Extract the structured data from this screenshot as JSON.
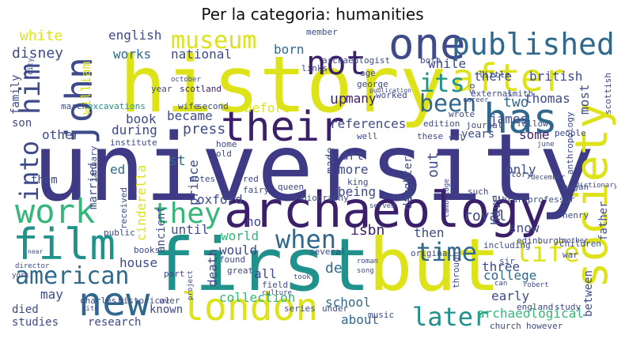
{
  "title": "Per la categoria: humanities",
  "colors": {
    "dark_purple": "#3b1f6b",
    "indigo": "#3e4a89",
    "blue": "#31688e",
    "teal": "#21918c",
    "green": "#35b779",
    "lime": "#90d743",
    "yellow": "#dde318"
  },
  "words": {
    "university": "university",
    "history": "history",
    "first": "first",
    "but": "but",
    "archaeology": "archaeology",
    "london": "london",
    "society": "society",
    "film": "film",
    "their": "their",
    "new": "new",
    "work": "work",
    "john": "john",
    "one": "one",
    "published": "published",
    "has": "has",
    "after": "after",
    "museum": "museum",
    "not": "not",
    "been": "been",
    "its": "its",
    "they": "they",
    "american": "american",
    "time": "time",
    "later": "later",
    "life": "life",
    "when": "when",
    "him": "him",
    "into": "into",
    "white": "white",
    "english": "english",
    "disney": "disney",
    "works": "works",
    "national": "national",
    "william": "william",
    "born": "born",
    "while": "while",
    "there": "there",
    "british": "british",
    "family": "family",
    "scotland": "scotland",
    "up": "up",
    "many": "many",
    "two": "two",
    "thomas": "thomas",
    "most": "most",
    "excavations": "excavations",
    "wife": "wife",
    "second": "second",
    "before": "before",
    "references": "references",
    "james": "james",
    "other": "other",
    "book": "book",
    "became": "became",
    "press": "press",
    "some": "some",
    "years": "years",
    "during": "during",
    "st": "st",
    "art": "art",
    "more": "more",
    "out": "out",
    "only": "only",
    "story": "story",
    "ed": "ed",
    "married": "married",
    "cinderella": "cinderella",
    "prince": "prince",
    "made": "made",
    "being": "being",
    "daughter": "daughter",
    "oxford": "oxford",
    "ancient": "ancient",
    "until": "until",
    "isbn": "isbn",
    "royal": "royal",
    "have": "have",
    "snow": "snow",
    "world": "world",
    "would": "would",
    "then": "then",
    "three": "three",
    "college": "college",
    "early": "early",
    "house": "house",
    "death": "death",
    "all": "all",
    "de": "de",
    "may": "may",
    "collection": "collection",
    "school": "school",
    "archaeological": "archaeological",
    "between": "between",
    "died": "died",
    "known": "known",
    "about": "about",
    "studies": "studies",
    "research": "research",
    "public": "public",
    "books": "books",
    "charles": "charles",
    "historical": "historical",
    "music": "music",
    "series": "series",
    "under": "under",
    "church": "church",
    "however": "however",
    "study": "study",
    "england": "england",
    "children": "children",
    "henry": "henry",
    "father": "father",
    "edinburgh": "edinburgh",
    "including": "including",
    "war": "war",
    "sir": "sir",
    "professor": "professor",
    "library": "library",
    "began": "began",
    "anthropology": "anthropology",
    "fellow": "fellow",
    "people": "people",
    "smith": "smith",
    "external": "external",
    "wrote": "wrote",
    "edition": "edition",
    "journal": "journal",
    "little": "little",
    "george": "george",
    "worked": "worked",
    "age": "age",
    "archaeologist": "archaeologist",
    "member": "member",
    "links": "links",
    "both": "both",
    "city": "city",
    "october": "october",
    "year": "year",
    "march": "march",
    "son": "son",
    "institute": "institute",
    "january": "january",
    "them": "them",
    "well": "well",
    "queen": "queen",
    "king": "king",
    "fairy": "fairy",
    "biography": "biography",
    "red": "red",
    "notes": "notes",
    "home": "home",
    "old": "old",
    "received": "received",
    "no": "no",
    "several": "several",
    "original": "original",
    "found": "found",
    "great": "great",
    "part": "part",
    "project": "project",
    "director": "director",
    "field": "field",
    "culture": "culture",
    "took": "took",
    "roman": "roman",
    "song": "song",
    "served": "served",
    "cambridge": "cambridge",
    "such": "such",
    "than": "than",
    "through": "through",
    "can": "can",
    "robert": "robert",
    "december": "december",
    "june": "june",
    "dictionary": "dictionary",
    "scottish": "scottish",
    "these": "these",
    "vol": "vol",
    "career": "career",
    "publication": "publication",
    "so": "so",
    "mother": "mother",
    "york": "york",
    "near": "near",
    "site": "site",
    "over": "over"
  }
}
